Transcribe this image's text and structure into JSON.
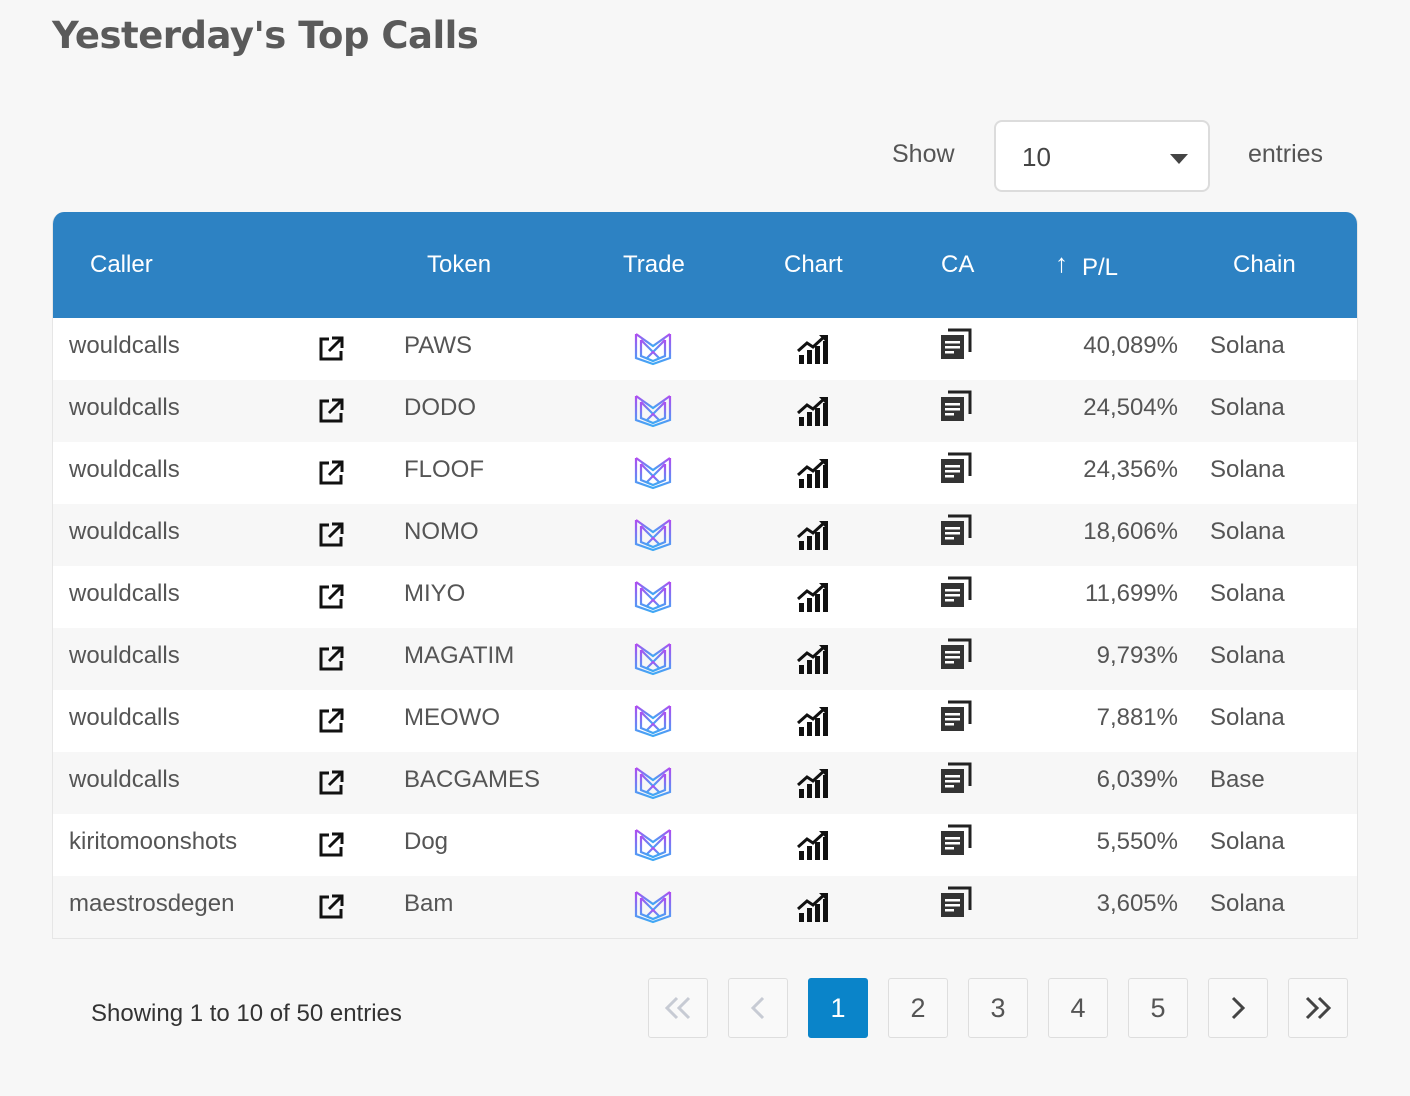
{
  "page": {
    "title": "Yesterday's Top Calls"
  },
  "length_control": {
    "show_label": "Show",
    "selected": "10",
    "entries_label": "entries"
  },
  "columns": [
    "Caller",
    "Token",
    "Trade",
    "Chart",
    "CA",
    "P/L",
    "Chain"
  ],
  "rows": [
    {
      "caller": "wouldcalls",
      "token": "PAWS",
      "pl": "40,089%",
      "chain": "Solana"
    },
    {
      "caller": "wouldcalls",
      "token": "DODO",
      "pl": "24,504%",
      "chain": "Solana"
    },
    {
      "caller": "wouldcalls",
      "token": "FLOOF",
      "pl": "24,356%",
      "chain": "Solana"
    },
    {
      "caller": "wouldcalls",
      "token": "NOMO",
      "pl": "18,606%",
      "chain": "Solana"
    },
    {
      "caller": "wouldcalls",
      "token": "MIYO",
      "pl": "11,699%",
      "chain": "Solana"
    },
    {
      "caller": "wouldcalls",
      "token": "MAGATIM",
      "pl": "9,793%",
      "chain": "Solana"
    },
    {
      "caller": "wouldcalls",
      "token": "MEOWO",
      "pl": "7,881%",
      "chain": "Solana"
    },
    {
      "caller": "wouldcalls",
      "token": "BACGAMES",
      "pl": "6,039%",
      "chain": "Base"
    },
    {
      "caller": "kiritomoonshots",
      "token": "Dog",
      "pl": "5,550%",
      "chain": "Solana"
    },
    {
      "caller": "maestrosdegen",
      "token": "Bam",
      "pl": "3,605%",
      "chain": "Solana"
    }
  ],
  "icons": {
    "open_link": "external-link-icon",
    "trade": "maestro-logo-icon",
    "chart": "chart-growth-icon",
    "ca": "copy-contract-icon",
    "sort": "sort-ascending-icon"
  },
  "colors": {
    "header": "#2d82c3",
    "active_page": "#0a84c9",
    "trade_gradient": [
      "#b14cf0",
      "#3fa9f5"
    ]
  },
  "footer": {
    "info": "Showing 1 to 10 of 50 entries"
  },
  "pagination": {
    "pages": [
      "1",
      "2",
      "3",
      "4",
      "5"
    ],
    "current": "1"
  }
}
